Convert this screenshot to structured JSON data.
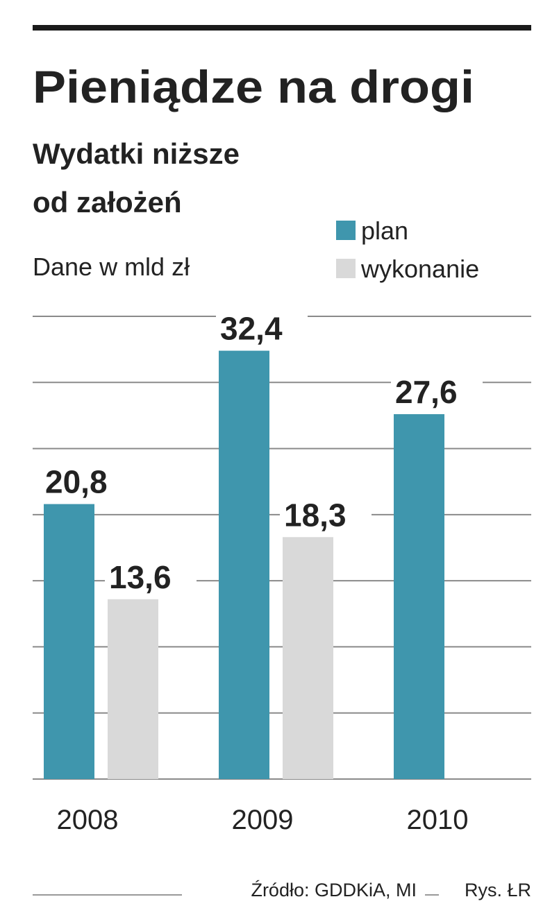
{
  "chart_data": {
    "type": "bar",
    "title": "Pieniądze na drogi",
    "subtitle": [
      "Wydatki niższe",
      "od założeń"
    ],
    "unit_note": "Dane w mld zł",
    "categories": [
      "2008",
      "2009",
      "2010"
    ],
    "series": [
      {
        "name": "plan",
        "color": "#3f96ad",
        "values": [
          20.8,
          32.4,
          27.6
        ],
        "value_labels": [
          "20,8",
          "32,4",
          "27,6"
        ]
      },
      {
        "name": "wykonanie",
        "color": "#d9d9d9",
        "values": [
          13.6,
          18.3,
          null
        ],
        "value_labels": [
          "13,6",
          "18,3",
          null
        ]
      }
    ],
    "ylim": [
      0,
      35
    ],
    "yticks": [
      0,
      5,
      10,
      15,
      20,
      25,
      30,
      35
    ],
    "grid": true,
    "source": "Źródło: GDDKiA, MI",
    "credit": "Rys. ŁR"
  }
}
